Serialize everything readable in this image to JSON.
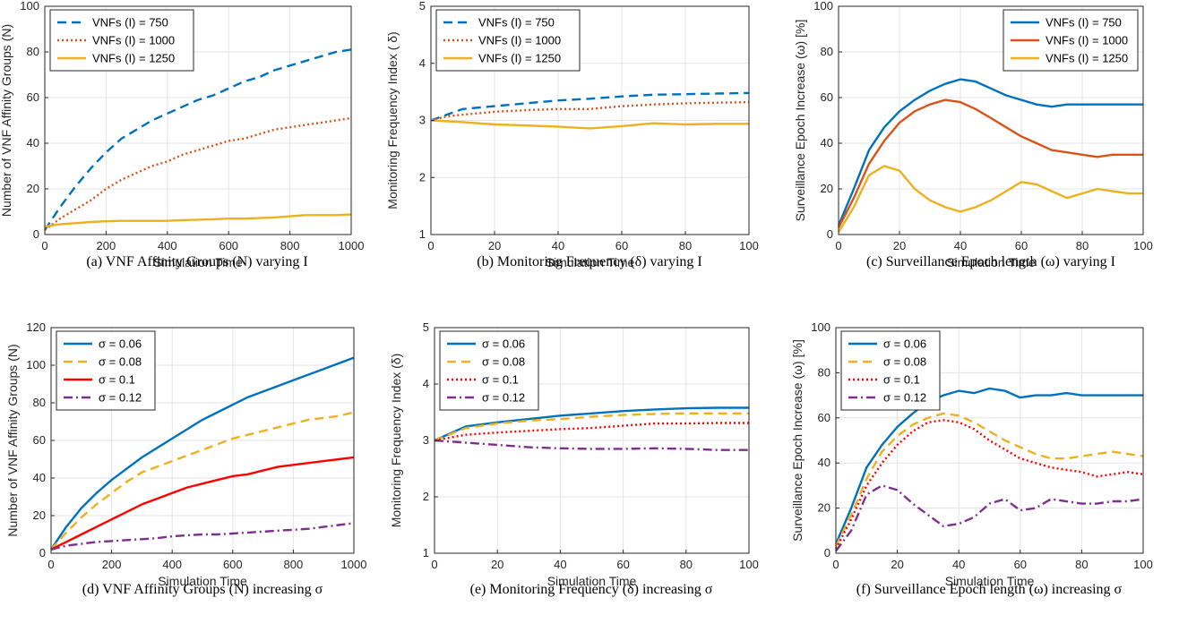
{
  "colors": {
    "blue": "#0072BD",
    "orange": "#D95319",
    "yellow": "#EDB120",
    "red": "#FF0000",
    "purple": "#7E2F8E",
    "grid": "#E3E3E3",
    "axis": "#262626"
  },
  "chart_data": [
    {
      "type": "line",
      "id": "a",
      "caption": "(a) VNF Affinity Groups (N) varying I",
      "xlabel": "Simulation Time",
      "ylabel": "Number of VNF Affinity Groups (N)",
      "xlim": [
        0,
        1000
      ],
      "ylim": [
        0,
        100
      ],
      "xticks": [
        0,
        200,
        400,
        600,
        800,
        1000
      ],
      "yticks": [
        0,
        20,
        40,
        60,
        80,
        100
      ],
      "grid": true,
      "legend_position": "top-left",
      "series": [
        {
          "name": "VNFs (I) = 750",
          "style": "dashed",
          "color": "#0072BD",
          "x": [
            0,
            50,
            100,
            150,
            200,
            250,
            300,
            350,
            400,
            450,
            500,
            550,
            600,
            650,
            700,
            750,
            800,
            850,
            900,
            950,
            1000
          ],
          "y": [
            2,
            12,
            21,
            29,
            36,
            42,
            46,
            50,
            53,
            56,
            59,
            61,
            64,
            67,
            69,
            72,
            74,
            76,
            78,
            80,
            81
          ]
        },
        {
          "name": "VNFs (I) = 1000",
          "style": "dotted",
          "color": "#D95319",
          "x": [
            0,
            50,
            100,
            150,
            200,
            250,
            300,
            350,
            400,
            450,
            500,
            550,
            600,
            650,
            700,
            750,
            800,
            850,
            900,
            950,
            1000
          ],
          "y": [
            2,
            7,
            11,
            15,
            20,
            24,
            27,
            30,
            32,
            35,
            37,
            39,
            41,
            42,
            44,
            46,
            47,
            48,
            49,
            50,
            51
          ]
        },
        {
          "name": "VNFs (I) = 1250",
          "style": "solid",
          "color": "#EDB120",
          "x": [
            0,
            50,
            100,
            150,
            200,
            250,
            300,
            350,
            400,
            450,
            500,
            550,
            600,
            650,
            700,
            750,
            800,
            850,
            900,
            950,
            1000
          ],
          "y": [
            3.5,
            4.5,
            5,
            5.5,
            5.8,
            6,
            6,
            6,
            6,
            6.3,
            6.5,
            6.7,
            7,
            7,
            7.2,
            7.5,
            8,
            8.5,
            8.5,
            8.5,
            8.8
          ]
        }
      ]
    },
    {
      "type": "line",
      "id": "b",
      "caption": "(b) Monitoring Frequency (δ) varying I",
      "xlabel": "Simulation Time",
      "ylabel": "Monitoring Frequency Index ( δ)",
      "xlim": [
        0,
        100
      ],
      "ylim": [
        1,
        5
      ],
      "xticks": [
        0,
        20,
        40,
        60,
        80,
        100
      ],
      "yticks": [
        1,
        2,
        3,
        4,
        5
      ],
      "grid": true,
      "legend_position": "top-left",
      "series": [
        {
          "name": "VNFs (I) = 750",
          "style": "dashed",
          "color": "#0072BD",
          "x": [
            0,
            5,
            10,
            20,
            30,
            40,
            50,
            60,
            70,
            80,
            90,
            100
          ],
          "y": [
            3.0,
            3.1,
            3.2,
            3.25,
            3.3,
            3.35,
            3.38,
            3.42,
            3.45,
            3.46,
            3.47,
            3.48
          ]
        },
        {
          "name": "VNFs (I) = 1000",
          "style": "dotted",
          "color": "#D95319",
          "x": [
            0,
            5,
            10,
            20,
            30,
            40,
            50,
            60,
            70,
            80,
            90,
            100
          ],
          "y": [
            3.0,
            3.07,
            3.1,
            3.15,
            3.18,
            3.2,
            3.2,
            3.25,
            3.28,
            3.3,
            3.31,
            3.32
          ]
        },
        {
          "name": "VNFs (I) = 1250",
          "style": "solid",
          "color": "#EDB120",
          "x": [
            0,
            10,
            20,
            30,
            40,
            50,
            60,
            70,
            80,
            90,
            100
          ],
          "y": [
            3.0,
            2.97,
            2.93,
            2.91,
            2.89,
            2.86,
            2.9,
            2.95,
            2.93,
            2.94,
            2.94
          ]
        }
      ]
    },
    {
      "type": "line",
      "id": "c",
      "caption": "(c) Surveillance Epoch length (ω) varying I",
      "xlabel": "Simulation Time",
      "ylabel": "Surveillance Epoch Increase (ω) [%]",
      "xlim": [
        0,
        100
      ],
      "ylim": [
        0,
        100
      ],
      "xticks": [
        0,
        20,
        40,
        60,
        80,
        100
      ],
      "yticks": [
        0,
        20,
        40,
        60,
        80,
        100
      ],
      "grid": true,
      "legend_position": "top-right",
      "series": [
        {
          "name": "VNFs (I) = 750",
          "style": "solid",
          "color": "#0072BD",
          "x": [
            0,
            5,
            10,
            15,
            20,
            25,
            30,
            35,
            40,
            45,
            50,
            55,
            60,
            65,
            70,
            75,
            80,
            85,
            90,
            95,
            100
          ],
          "y": [
            4,
            20,
            37,
            47,
            54,
            59,
            63,
            66,
            68,
            67,
            64,
            61,
            59,
            57,
            56,
            57,
            57,
            57,
            57,
            57,
            57
          ]
        },
        {
          "name": "VNFs (I) = 1000",
          "style": "solid",
          "color": "#D95319",
          "x": [
            0,
            5,
            10,
            15,
            20,
            25,
            30,
            35,
            40,
            45,
            50,
            55,
            60,
            65,
            70,
            75,
            80,
            85,
            90,
            95,
            100
          ],
          "y": [
            3,
            16,
            31,
            41,
            49,
            54,
            57,
            59,
            58,
            55,
            51,
            47,
            43,
            40,
            37,
            36,
            35,
            34,
            35,
            35,
            35
          ]
        },
        {
          "name": "VNFs (I) = 1250",
          "style": "solid",
          "color": "#EDB120",
          "x": [
            0,
            5,
            10,
            15,
            20,
            25,
            30,
            35,
            40,
            45,
            50,
            55,
            60,
            65,
            70,
            75,
            80,
            85,
            90,
            95,
            100
          ],
          "y": [
            1,
            12,
            26,
            30,
            28,
            20,
            15,
            12,
            10,
            12,
            15,
            19,
            23,
            22,
            19,
            16,
            18,
            20,
            19,
            18,
            18
          ]
        }
      ]
    },
    {
      "type": "line",
      "id": "d",
      "caption": "(d) VNF Affinity Groups (N) increasing σ",
      "xlabel": "Simulation Time",
      "ylabel": "Number of VNF Affinity Groups (N)",
      "xlim": [
        0,
        1000
      ],
      "ylim": [
        0,
        120
      ],
      "xticks": [
        0,
        200,
        400,
        600,
        800,
        1000
      ],
      "yticks": [
        0,
        20,
        40,
        60,
        80,
        100,
        120
      ],
      "grid": true,
      "legend_position": "top-left",
      "series": [
        {
          "name": "σ = 0.06",
          "style": "solid",
          "color": "#0072BD",
          "x": [
            0,
            50,
            100,
            150,
            200,
            250,
            300,
            350,
            400,
            450,
            500,
            550,
            600,
            650,
            700,
            750,
            800,
            850,
            900,
            950,
            1000
          ],
          "y": [
            2,
            14,
            24,
            32,
            39,
            45,
            51,
            56,
            61,
            66,
            71,
            75,
            79,
            83,
            86,
            89,
            92,
            95,
            98,
            101,
            104
          ]
        },
        {
          "name": "σ = 0.08",
          "style": "dashed",
          "color": "#EDB120",
          "x": [
            0,
            50,
            100,
            150,
            200,
            250,
            300,
            350,
            400,
            450,
            500,
            550,
            600,
            650,
            700,
            750,
            800,
            850,
            900,
            950,
            1000
          ],
          "y": [
            2,
            11,
            19,
            26,
            32,
            38,
            43,
            46,
            49,
            52,
            55,
            58,
            61,
            63,
            65,
            67,
            69,
            71,
            72,
            73,
            75
          ]
        },
        {
          "name": "σ = 0.1",
          "style": "solid",
          "color": "#FF0000",
          "x": [
            0,
            50,
            100,
            150,
            200,
            250,
            300,
            350,
            400,
            450,
            500,
            550,
            600,
            650,
            700,
            750,
            800,
            850,
            900,
            950,
            1000
          ],
          "y": [
            2,
            6,
            10,
            14,
            18,
            22,
            26,
            29,
            32,
            35,
            37,
            39,
            41,
            42,
            44,
            46,
            47,
            48,
            49,
            50,
            51
          ]
        },
        {
          "name": "σ = 0.12",
          "style": "dashdot",
          "color": "#7E2F8E",
          "x": [
            0,
            50,
            100,
            150,
            200,
            250,
            300,
            350,
            400,
            450,
            500,
            550,
            600,
            650,
            700,
            750,
            800,
            850,
            900,
            950,
            1000
          ],
          "y": [
            2,
            4,
            5,
            6,
            6.5,
            7,
            7.5,
            8,
            9,
            9.5,
            10,
            10,
            10.5,
            11,
            11.5,
            12,
            12.5,
            13,
            14,
            15,
            16
          ]
        }
      ]
    },
    {
      "type": "line",
      "id": "e",
      "caption": "(e) Monitoring Frequency (δ) increasing σ",
      "xlabel": "Simulation Time",
      "ylabel": "Monitoring Frequency Index (δ)",
      "xlim": [
        0,
        100
      ],
      "ylim": [
        1,
        5
      ],
      "xticks": [
        0,
        20,
        40,
        60,
        80,
        100
      ],
      "yticks": [
        1,
        2,
        3,
        4,
        5
      ],
      "grid": true,
      "legend_position": "top-left",
      "series": [
        {
          "name": "σ = 0.06",
          "style": "solid",
          "color": "#0072BD",
          "x": [
            0,
            10,
            20,
            30,
            40,
            50,
            60,
            70,
            80,
            90,
            100
          ],
          "y": [
            3.0,
            3.25,
            3.32,
            3.38,
            3.44,
            3.48,
            3.52,
            3.55,
            3.57,
            3.58,
            3.58
          ]
        },
        {
          "name": "σ = 0.08",
          "style": "dashed",
          "color": "#EDB120",
          "x": [
            0,
            10,
            20,
            30,
            40,
            50,
            60,
            70,
            80,
            90,
            100
          ],
          "y": [
            3.0,
            3.22,
            3.3,
            3.35,
            3.38,
            3.42,
            3.45,
            3.47,
            3.48,
            3.48,
            3.48
          ]
        },
        {
          "name": "σ = 0.1",
          "style": "dotted",
          "color": "#FF0000",
          "x": [
            0,
            10,
            20,
            30,
            40,
            50,
            60,
            70,
            80,
            90,
            100
          ],
          "y": [
            3.0,
            3.1,
            3.14,
            3.17,
            3.2,
            3.22,
            3.26,
            3.3,
            3.3,
            3.31,
            3.31
          ]
        },
        {
          "name": "σ = 0.12",
          "style": "dashdot",
          "color": "#7E2F8E",
          "x": [
            0,
            10,
            20,
            30,
            40,
            50,
            60,
            70,
            80,
            90,
            100
          ],
          "y": [
            3.0,
            2.96,
            2.92,
            2.88,
            2.86,
            2.85,
            2.85,
            2.86,
            2.85,
            2.83,
            2.83
          ]
        }
      ]
    },
    {
      "type": "line",
      "id": "f",
      "caption": "(f) Surveillance Epoch length (ω) increasing σ",
      "xlabel": "Simulation Time",
      "ylabel": "Surveillance Epoch Increase (ω) [%]",
      "xlim": [
        0,
        100
      ],
      "ylim": [
        0,
        100
      ],
      "xticks": [
        0,
        20,
        40,
        60,
        80,
        100
      ],
      "yticks": [
        0,
        20,
        40,
        60,
        80,
        100
      ],
      "grid": true,
      "legend_position": "top-left",
      "series": [
        {
          "name": "σ = 0.06",
          "style": "solid",
          "color": "#0072BD",
          "x": [
            0,
            5,
            10,
            15,
            20,
            25,
            30,
            35,
            40,
            45,
            50,
            55,
            60,
            65,
            70,
            75,
            80,
            85,
            90,
            95,
            100
          ],
          "y": [
            4,
            20,
            38,
            48,
            56,
            62,
            67,
            70,
            72,
            71,
            73,
            72,
            69,
            70,
            70,
            71,
            70,
            70,
            70,
            70,
            70
          ]
        },
        {
          "name": "σ = 0.08",
          "style": "dashed",
          "color": "#EDB120",
          "x": [
            0,
            5,
            10,
            15,
            20,
            25,
            30,
            35,
            40,
            45,
            50,
            55,
            60,
            65,
            70,
            75,
            80,
            85,
            90,
            95,
            100
          ],
          "y": [
            3,
            17,
            33,
            45,
            52,
            57,
            60,
            62,
            61,
            58,
            54,
            50,
            47,
            44,
            42,
            42,
            43,
            44,
            45,
            44,
            43
          ]
        },
        {
          "name": "σ = 0.1",
          "style": "dotted",
          "color": "#FF0000",
          "x": [
            0,
            5,
            10,
            15,
            20,
            25,
            30,
            35,
            40,
            45,
            50,
            55,
            60,
            65,
            70,
            75,
            80,
            85,
            90,
            95,
            100
          ],
          "y": [
            2,
            15,
            30,
            40,
            48,
            54,
            58,
            59,
            58,
            55,
            50,
            46,
            42,
            40,
            38,
            37,
            36,
            34,
            35,
            36,
            35
          ]
        },
        {
          "name": "σ = 0.12",
          "style": "dashdot",
          "color": "#7E2F8E",
          "x": [
            0,
            5,
            10,
            15,
            20,
            25,
            30,
            35,
            40,
            45,
            50,
            55,
            60,
            65,
            70,
            75,
            80,
            85,
            90,
            95,
            100
          ],
          "y": [
            1,
            10,
            26,
            30,
            28,
            22,
            17,
            12,
            13,
            16,
            22,
            24,
            19,
            20,
            24,
            23,
            22,
            22,
            23,
            23,
            24
          ]
        }
      ]
    }
  ]
}
